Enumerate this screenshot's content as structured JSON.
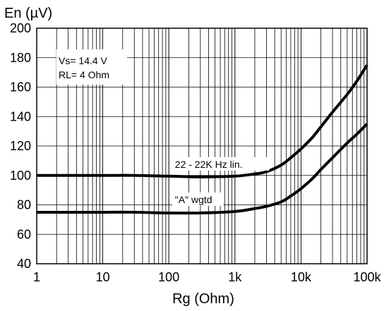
{
  "chart_data": {
    "type": "line",
    "title": "",
    "ylabel": "En (µV)",
    "xlabel": "Rg (Ohm)",
    "x_scale": "log",
    "xlim": [
      1,
      100000
    ],
    "ylim": [
      40,
      200
    ],
    "grid": true,
    "x_tick_labels": [
      "1",
      "10",
      "100",
      "1k",
      "10k",
      "100k"
    ],
    "x_tick_values": [
      1,
      10,
      100,
      1000,
      10000,
      100000
    ],
    "y_ticks": [
      40,
      60,
      80,
      100,
      120,
      140,
      160,
      180,
      200
    ],
    "annotations": [
      "Vs= 14.4 V",
      "RL= 4 Ohm"
    ],
    "series": [
      {
        "name": "22 - 22K Hz lin.",
        "x": [
          1,
          3,
          10,
          30,
          100,
          300,
          1000,
          2000,
          3000,
          5000,
          7000,
          10000,
          15000,
          20000,
          30000,
          50000,
          70000,
          100000
        ],
        "y": [
          100,
          100,
          100,
          100,
          99.5,
          99,
          99.5,
          101,
          102.5,
          107,
          112,
          118,
          126,
          133,
          143,
          155,
          164,
          175
        ]
      },
      {
        "name": "\"A\" wgtd",
        "x": [
          1,
          3,
          10,
          30,
          100,
          300,
          1000,
          2000,
          3000,
          5000,
          7000,
          10000,
          15000,
          20000,
          30000,
          50000,
          70000,
          100000
        ],
        "y": [
          75,
          75,
          75,
          75,
          74.5,
          74.5,
          75.5,
          77.5,
          79,
          82,
          86,
          91,
          98,
          104,
          112,
          122,
          128,
          135
        ]
      }
    ],
    "series_labels_position_x": [
      1000,
      1000
    ]
  }
}
